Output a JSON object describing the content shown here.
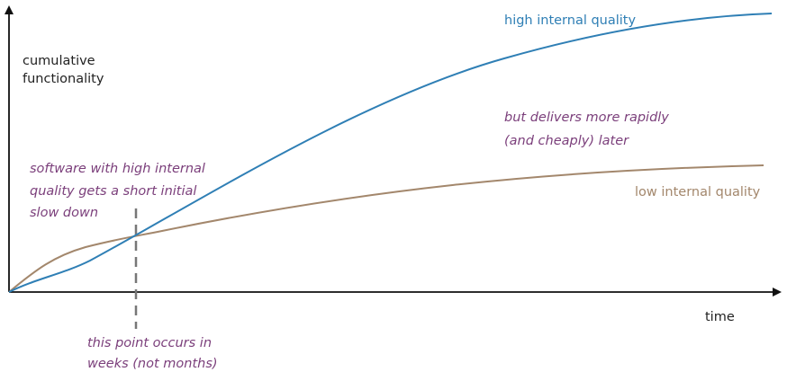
{
  "axes": {
    "y_label": [
      "cumulative",
      "functionality"
    ],
    "x_label": "time"
  },
  "curves": {
    "high": "high internal quality",
    "low": "low internal quality"
  },
  "annotations": {
    "later": [
      "but delivers more rapidly",
      "(and cheaply) later"
    ],
    "slowdown": [
      "software with high internal",
      "quality gets a short initial",
      "slow down"
    ],
    "point": [
      "this point occurs in",
      "weeks (not months)"
    ]
  }
}
